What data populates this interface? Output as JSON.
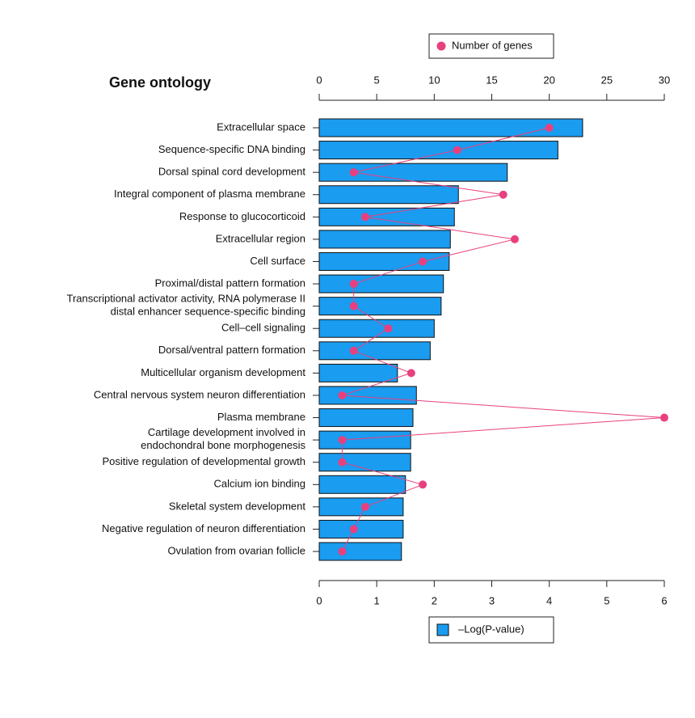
{
  "chart_data": {
    "type": "bar",
    "orientation": "horizontal",
    "title": "Gene ontology",
    "categories": [
      "Extracellular space",
      "Sequence-specific DNA binding",
      "Dorsal spinal cord development",
      "Integral component of plasma membrane",
      "Response to glucocorticoid",
      "Extracellular region",
      "Cell surface",
      "Proximal/distal pattern formation",
      "Transcriptional activator activity, RNA polymerase II\ndistal enhancer sequence-specific binding",
      "Cell–cell signaling",
      "Dorsal/ventral pattern formation",
      "Multicellular organism development",
      "Central nervous system neuron differentiation",
      "Plasma membrane",
      "Cartilage development involved in\nendochondral bone morphogenesis",
      "Positive regulation of developmental growth",
      "Calcium ion binding",
      "Skeletal system development",
      "Negative regulation of neuron differentiation",
      "Ovulation from ovarian follicle"
    ],
    "series": [
      {
        "name": "–Log(P-value)",
        "color": "#1a9cf0",
        "values": [
          4.58,
          4.15,
          3.27,
          2.42,
          2.35,
          2.28,
          2.26,
          2.16,
          2.12,
          2.0,
          1.93,
          1.36,
          1.69,
          1.63,
          1.59,
          1.59,
          1.5,
          1.46,
          1.46,
          1.43
        ]
      },
      {
        "name": "Number of genes",
        "color": "#e8407f",
        "axis": "x2",
        "values": [
          20,
          12,
          3,
          16,
          4,
          17,
          9,
          3,
          3,
          6,
          3,
          8,
          2,
          30,
          2,
          2,
          9,
          4,
          3,
          2
        ]
      }
    ],
    "xlim": [
      0,
      6
    ],
    "xticks": [
      0,
      1,
      2,
      3,
      4,
      5,
      6
    ],
    "x2lim": [
      0,
      30
    ],
    "x2ticks": [
      0,
      5,
      10,
      15,
      20,
      25,
      30
    ]
  }
}
